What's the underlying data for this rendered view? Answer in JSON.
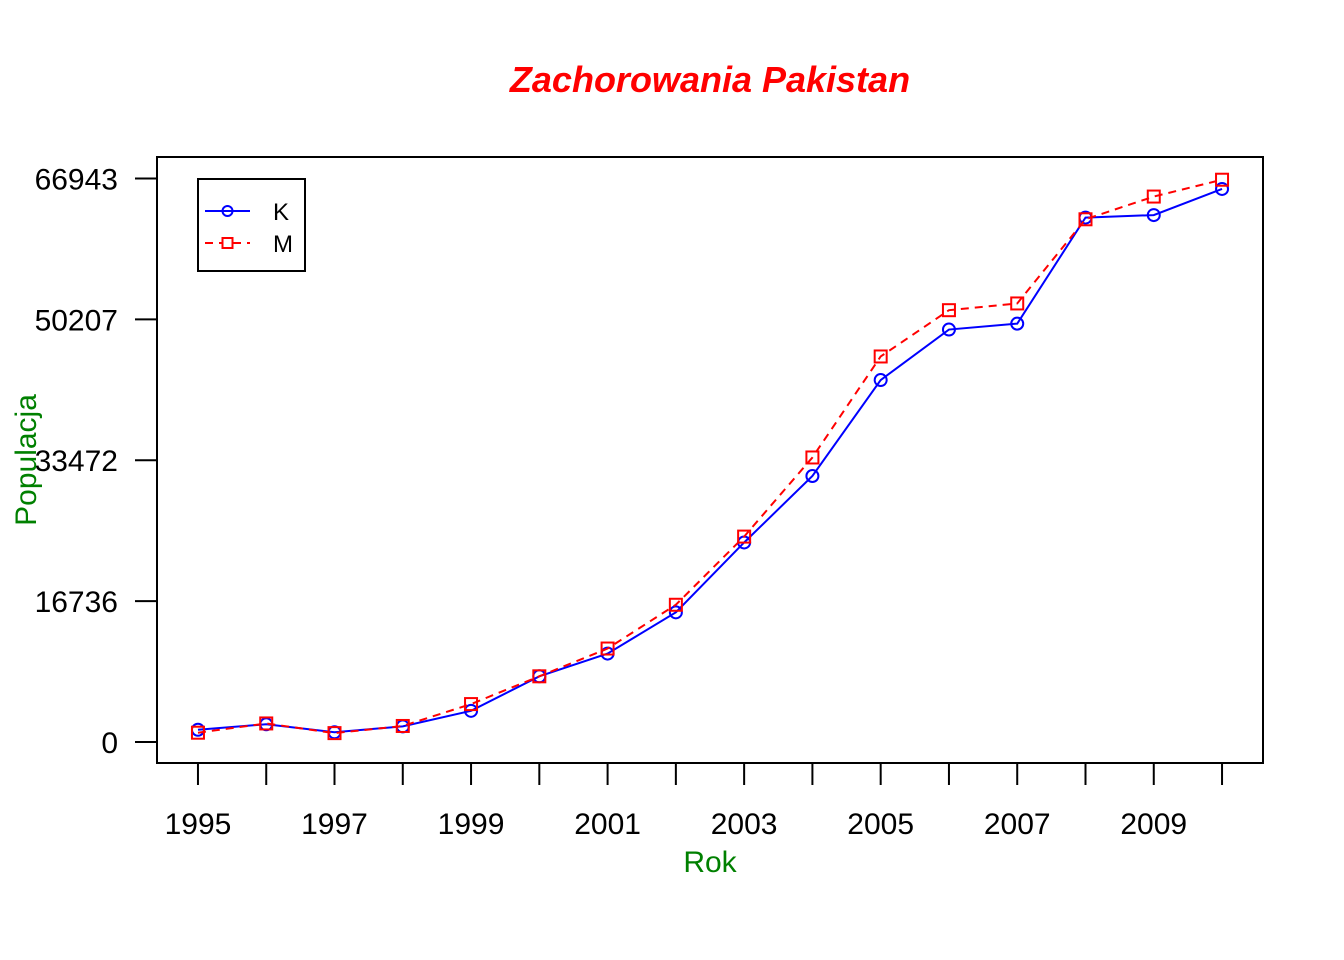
{
  "chart_data": {
    "type": "line",
    "title": "Zachorowania Pakistan",
    "xlabel": "Rok",
    "ylabel": "Populacja",
    "x": [
      1995,
      1996,
      1997,
      1998,
      1999,
      2000,
      2001,
      2002,
      2003,
      2004,
      2005,
      2006,
      2007,
      2008,
      2009,
      2010
    ],
    "x_ticks": [
      "1995",
      "1997",
      "1999",
      "2001",
      "2003",
      "2005",
      "2007",
      "2009"
    ],
    "y_ticks": [
      "0",
      "16736",
      "33472",
      "50207",
      "66943"
    ],
    "ylim": [
      -2500,
      69500
    ],
    "xlim": [
      1994.4,
      2010.6
    ],
    "grid": false,
    "legend_position": "top-left",
    "series": [
      {
        "name": "K",
        "color": "#0000ff",
        "line_style": "solid",
        "marker": "circle",
        "values": [
          1450,
          2100,
          1150,
          1850,
          3700,
          7800,
          10500,
          15400,
          23700,
          31600,
          43000,
          49000,
          49700,
          62300,
          62600,
          65700
        ]
      },
      {
        "name": "M",
        "color": "#ff0000",
        "line_style": "dashed",
        "marker": "square",
        "values": [
          1100,
          2200,
          1050,
          1900,
          4500,
          7800,
          11100,
          16300,
          24400,
          33800,
          45800,
          51300,
          52100,
          62100,
          64800,
          66800
        ]
      }
    ]
  }
}
